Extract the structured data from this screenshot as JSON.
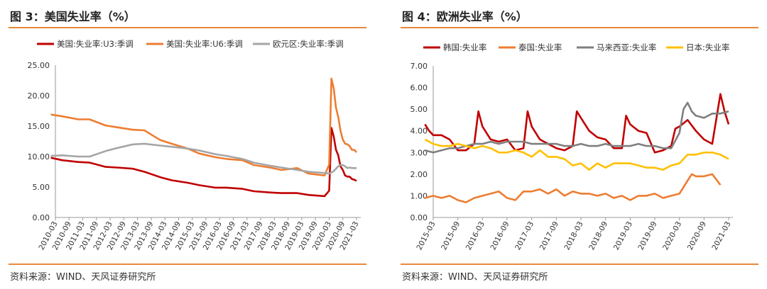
{
  "panels": [
    {
      "title": "图 3：美国失业率（%）",
      "source": "资料来源：WIND、天风证券研究所"
    },
    {
      "title": "图 4：欧洲失业率（%）",
      "source": "资料来源：WIND、天风证券研究所"
    }
  ],
  "chart_data": [
    {
      "type": "line",
      "title": "",
      "xlabel": "",
      "ylabel": "",
      "ylim": [
        0,
        25
      ],
      "yticks": [
        "0.00",
        "5.00",
        "10.00",
        "15.00",
        "20.00",
        "25.00"
      ],
      "xticks": [
        "2010-03",
        "2010-09",
        "2011-03",
        "2011-09",
        "2012-03",
        "2012-09",
        "2013-03",
        "2013-09",
        "2014-03",
        "2014-09",
        "2015-03",
        "2015-09",
        "2016-03",
        "2016-09",
        "2017-03",
        "2017-09",
        "2018-03",
        "2018-09",
        "2019-03",
        "2019-09",
        "2020-03",
        "2020-09",
        "2021-03"
      ],
      "grid": false,
      "legend_position": "top",
      "series": [
        {
          "name": "美国:失业率:U3:季调",
          "color": "#C00000",
          "x": [
            "2010-01",
            "2010-06",
            "2011-01",
            "2011-06",
            "2012-01",
            "2012-06",
            "2013-01",
            "2013-06",
            "2014-01",
            "2014-06",
            "2015-01",
            "2015-06",
            "2016-01",
            "2016-06",
            "2017-01",
            "2017-06",
            "2018-01",
            "2018-06",
            "2019-01",
            "2019-06",
            "2020-01",
            "2020-03",
            "2020-04",
            "2020-05",
            "2020-06",
            "2020-07",
            "2020-08",
            "2020-09",
            "2020-10",
            "2020-11",
            "2020-12",
            "2021-01",
            "2021-02",
            "2021-03"
          ],
          "values": [
            9.8,
            9.4,
            9.1,
            9.0,
            8.3,
            8.2,
            8.0,
            7.5,
            6.6,
            6.1,
            5.7,
            5.3,
            4.9,
            4.9,
            4.7,
            4.3,
            4.1,
            4.0,
            4.0,
            3.7,
            3.5,
            4.4,
            14.7,
            13.3,
            11.1,
            10.2,
            8.4,
            7.8,
            6.9,
            6.7,
            6.7,
            6.3,
            6.2,
            6.0
          ]
        },
        {
          "name": "美国:失业率:U6:季调",
          "color": "#ED7D31",
          "x": [
            "2010-01",
            "2010-06",
            "2011-01",
            "2011-06",
            "2012-01",
            "2012-06",
            "2013-01",
            "2013-06",
            "2014-01",
            "2014-06",
            "2015-01",
            "2015-06",
            "2016-01",
            "2016-06",
            "2017-01",
            "2017-06",
            "2018-01",
            "2018-06",
            "2019-01",
            "2019-06",
            "2020-01",
            "2020-03",
            "2020-04",
            "2020-05",
            "2020-06",
            "2020-07",
            "2020-08",
            "2020-09",
            "2020-10",
            "2020-11",
            "2020-12",
            "2021-01",
            "2021-02",
            "2021-03"
          ],
          "values": [
            16.9,
            16.6,
            16.1,
            16.1,
            15.1,
            14.8,
            14.4,
            14.3,
            12.7,
            12.1,
            11.3,
            10.5,
            9.9,
            9.6,
            9.4,
            8.6,
            8.2,
            7.8,
            8.1,
            7.2,
            6.9,
            8.7,
            22.8,
            21.2,
            18.0,
            16.5,
            14.2,
            12.8,
            12.1,
            12.0,
            11.7,
            11.1,
            11.1,
            10.7
          ]
        },
        {
          "name": "欧元区:失业率:季调",
          "color": "#A5A5A5",
          "x": [
            "2010-01",
            "2010-06",
            "2011-01",
            "2011-06",
            "2012-01",
            "2012-06",
            "2013-01",
            "2013-06",
            "2014-01",
            "2014-06",
            "2015-01",
            "2015-06",
            "2016-01",
            "2016-06",
            "2017-01",
            "2017-06",
            "2018-01",
            "2018-06",
            "2019-01",
            "2019-06",
            "2020-01",
            "2020-03",
            "2020-04",
            "2020-05",
            "2020-06",
            "2020-07",
            "2020-08",
            "2020-09",
            "2020-10",
            "2020-11",
            "2020-12",
            "2021-01",
            "2021-02",
            "2021-03"
          ],
          "values": [
            10.1,
            10.2,
            10.0,
            10.0,
            10.9,
            11.4,
            12.0,
            12.1,
            11.8,
            11.6,
            11.3,
            11.0,
            10.4,
            10.1,
            9.6,
            9.0,
            8.5,
            8.2,
            7.8,
            7.5,
            7.3,
            7.2,
            7.4,
            7.6,
            8.0,
            8.4,
            8.6,
            8.6,
            8.4,
            8.1,
            8.2,
            8.1,
            8.1,
            8.1
          ]
        }
      ]
    },
    {
      "type": "line",
      "title": "",
      "xlabel": "",
      "ylabel": "",
      "ylim": [
        0,
        7
      ],
      "yticks": [
        "0.00",
        "1.00",
        "2.00",
        "3.00",
        "4.00",
        "5.00",
        "6.00",
        "7.00"
      ],
      "xticks": [
        "2015-03",
        "2015-09",
        "2016-03",
        "2016-09",
        "2017-03",
        "2017-09",
        "2018-03",
        "2018-09",
        "2019-03",
        "2019-09",
        "2020-03",
        "2020-09",
        "2021-03"
      ],
      "grid": false,
      "legend_position": "top",
      "series": [
        {
          "name": "韩国:失业率",
          "color": "#C00000",
          "x": [
            "2015-01",
            "2015-02",
            "2015-03",
            "2015-05",
            "2015-07",
            "2015-09",
            "2015-11",
            "2016-01",
            "2016-02",
            "2016-03",
            "2016-05",
            "2016-07",
            "2016-09",
            "2016-11",
            "2017-01",
            "2017-02",
            "2017-03",
            "2017-05",
            "2017-07",
            "2017-09",
            "2017-11",
            "2018-01",
            "2018-02",
            "2018-03",
            "2018-05",
            "2018-07",
            "2018-09",
            "2018-11",
            "2019-01",
            "2019-02",
            "2019-03",
            "2019-05",
            "2019-07",
            "2019-09",
            "2019-11",
            "2020-01",
            "2020-02",
            "2020-03",
            "2020-05",
            "2020-07",
            "2020-09",
            "2020-11",
            "2021-01",
            "2021-02",
            "2021-03"
          ],
          "values": [
            4.3,
            4.0,
            3.8,
            3.8,
            3.6,
            3.1,
            3.1,
            3.4,
            4.9,
            4.2,
            3.6,
            3.5,
            3.6,
            3.1,
            3.2,
            4.9,
            4.2,
            3.6,
            3.4,
            3.2,
            3.1,
            3.3,
            4.9,
            4.6,
            4.0,
            3.7,
            3.6,
            3.2,
            3.2,
            4.7,
            4.3,
            4.0,
            3.9,
            3.0,
            3.1,
            3.3,
            4.1,
            4.2,
            4.5,
            4.0,
            3.6,
            3.4,
            5.7,
            4.9,
            4.3
          ]
        },
        {
          "name": "泰国:失业率",
          "color": "#ED7D31",
          "x": [
            "2015-01",
            "2015-03",
            "2015-05",
            "2015-07",
            "2015-09",
            "2015-11",
            "2016-01",
            "2016-03",
            "2016-05",
            "2016-07",
            "2016-09",
            "2016-11",
            "2017-01",
            "2017-03",
            "2017-05",
            "2017-07",
            "2017-09",
            "2017-11",
            "2018-01",
            "2018-03",
            "2018-05",
            "2018-07",
            "2018-09",
            "2018-11",
            "2019-01",
            "2019-03",
            "2019-05",
            "2019-07",
            "2019-09",
            "2019-11",
            "2020-01",
            "2020-03",
            "2020-05",
            "2020-06",
            "2020-07",
            "2020-09",
            "2020-11",
            "2021-01"
          ],
          "values": [
            0.9,
            1.0,
            0.9,
            1.0,
            0.8,
            0.7,
            0.9,
            1.0,
            1.1,
            1.2,
            0.9,
            0.8,
            1.2,
            1.2,
            1.3,
            1.1,
            1.3,
            1.0,
            1.2,
            1.1,
            1.1,
            1.0,
            1.1,
            0.9,
            1.0,
            0.8,
            1.0,
            1.0,
            1.1,
            0.9,
            1.0,
            1.1,
            1.7,
            2.0,
            1.9,
            1.9,
            2.0,
            1.5
          ]
        },
        {
          "name": "马来西亚:失业率",
          "color": "#7F7F7F",
          "x": [
            "2015-01",
            "2015-03",
            "2015-05",
            "2015-07",
            "2015-09",
            "2015-11",
            "2016-01",
            "2016-03",
            "2016-05",
            "2016-07",
            "2016-09",
            "2016-11",
            "2017-01",
            "2017-03",
            "2017-05",
            "2017-07",
            "2017-09",
            "2017-11",
            "2018-01",
            "2018-03",
            "2018-05",
            "2018-07",
            "2018-09",
            "2018-11",
            "2019-01",
            "2019-03",
            "2019-05",
            "2019-07",
            "2019-09",
            "2019-11",
            "2020-01",
            "2020-03",
            "2020-04",
            "2020-05",
            "2020-06",
            "2020-07",
            "2020-09",
            "2020-11",
            "2021-01",
            "2021-03"
          ],
          "values": [
            3.1,
            3.0,
            3.1,
            3.2,
            3.2,
            3.3,
            3.4,
            3.4,
            3.5,
            3.4,
            3.5,
            3.5,
            3.5,
            3.4,
            3.4,
            3.4,
            3.4,
            3.3,
            3.3,
            3.4,
            3.3,
            3.3,
            3.4,
            3.3,
            3.3,
            3.3,
            3.4,
            3.3,
            3.3,
            3.2,
            3.2,
            3.9,
            5.0,
            5.3,
            4.9,
            4.7,
            4.6,
            4.8,
            4.8,
            4.9
          ]
        },
        {
          "name": "日本:失业率",
          "color": "#FFC000",
          "x": [
            "2015-01",
            "2015-03",
            "2015-05",
            "2015-07",
            "2015-09",
            "2015-11",
            "2016-01",
            "2016-03",
            "2016-05",
            "2016-07",
            "2016-09",
            "2016-11",
            "2017-01",
            "2017-03",
            "2017-05",
            "2017-07",
            "2017-09",
            "2017-11",
            "2018-01",
            "2018-03",
            "2018-05",
            "2018-07",
            "2018-09",
            "2018-11",
            "2019-01",
            "2019-03",
            "2019-05",
            "2019-07",
            "2019-09",
            "2019-11",
            "2020-01",
            "2020-03",
            "2020-05",
            "2020-07",
            "2020-09",
            "2020-11",
            "2021-01",
            "2021-03"
          ],
          "values": [
            3.6,
            3.4,
            3.3,
            3.3,
            3.4,
            3.3,
            3.2,
            3.3,
            3.2,
            3.0,
            3.0,
            3.1,
            3.0,
            2.8,
            3.1,
            2.8,
            2.8,
            2.7,
            2.4,
            2.5,
            2.2,
            2.5,
            2.3,
            2.5,
            2.5,
            2.5,
            2.4,
            2.3,
            2.3,
            2.2,
            2.4,
            2.5,
            2.9,
            2.9,
            3.0,
            3.0,
            2.9,
            2.7
          ]
        }
      ]
    }
  ]
}
